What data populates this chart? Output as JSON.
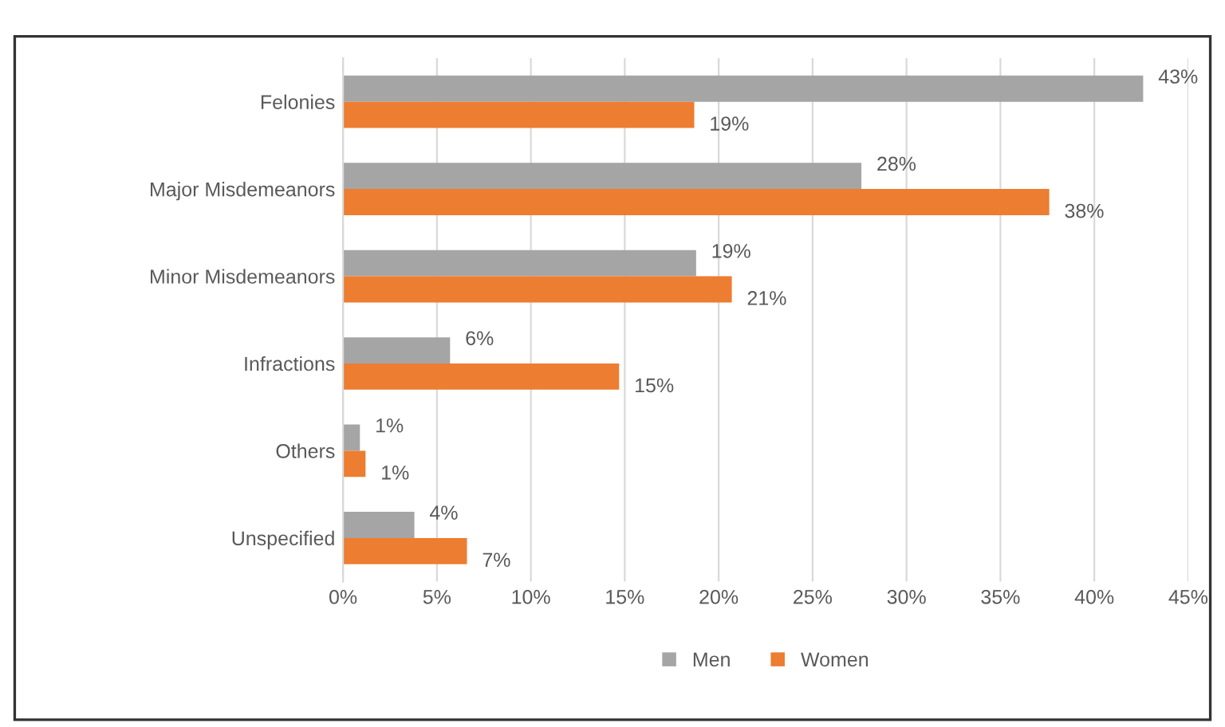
{
  "chart_data": {
    "type": "bar",
    "orientation": "horizontal",
    "categories": [
      "Felonies",
      "Major Misdemeanors",
      "Minor Misdemeanors",
      "Infractions",
      "Others",
      "Unspecified"
    ],
    "series": [
      {
        "name": "Men",
        "color": "#a5a5a5",
        "values": [
          42.6,
          27.6,
          18.8,
          5.7,
          0.9,
          3.8
        ],
        "value_labels": [
          "43%",
          "28%",
          "19%",
          "6%",
          "1%",
          "4%"
        ]
      },
      {
        "name": "Women",
        "color": "#ed7d31",
        "values": [
          18.7,
          37.6,
          20.7,
          14.7,
          1.2,
          6.6
        ],
        "value_labels": [
          "19%",
          "38%",
          "21%",
          "15%",
          "1%",
          "7%"
        ]
      }
    ],
    "xlim": [
      0,
      45
    ],
    "xticks": [
      {
        "value": 0,
        "label": "0%"
      },
      {
        "value": 5,
        "label": "5%"
      },
      {
        "value": 10,
        "label": "10%"
      },
      {
        "value": 15,
        "label": "15%"
      },
      {
        "value": 20,
        "label": "20%"
      },
      {
        "value": 25,
        "label": "25%"
      },
      {
        "value": 30,
        "label": "30%"
      },
      {
        "value": 35,
        "label": "35%"
      },
      {
        "value": 40,
        "label": "40%"
      },
      {
        "value": 45,
        "label": "45%"
      }
    ],
    "grid": "x",
    "legend": "bottom"
  }
}
